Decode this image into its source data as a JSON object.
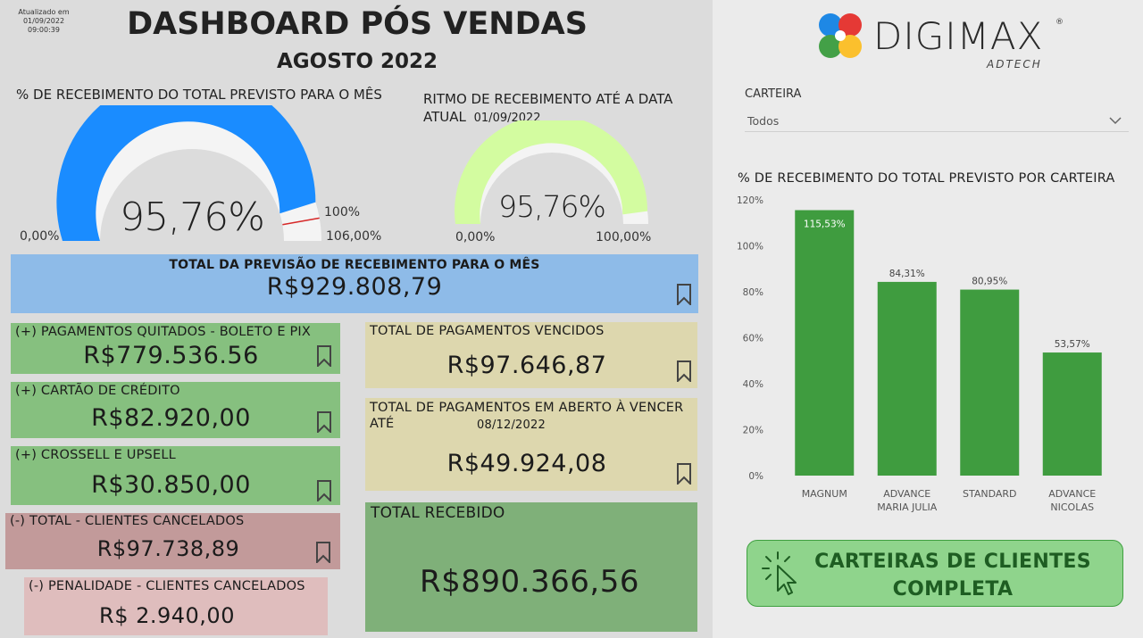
{
  "updated": {
    "label": "Atualizado em",
    "datetime": "01/09/2022 09:00:39"
  },
  "header": {
    "title": "DASHBOARD PÓS VENDAS",
    "subtitle": "AGOSTO 2022"
  },
  "gauge1": {
    "title": "% DE RECEBIMENTO DO TOTAL PREVISTO PARA O MÊS",
    "value": "95,76%",
    "min_label": "0,00%",
    "max_label": "106,00%",
    "target_label": "100%",
    "value_fraction": 0.9034,
    "target_fraction": 0.9434,
    "fill_color": "#1a8cff",
    "track_color": "#f4f4f4",
    "target_color": "#d62828"
  },
  "gauge2": {
    "title": "RITMO DE RECEBIMENTO ATÉ A DATA ATUAL",
    "date": "01/09/2022",
    "value": "95,76%",
    "min_label": "0,00%",
    "max_label": "100,00%",
    "value_fraction": 0.9576,
    "fill_color": "#d3fca0",
    "track_color": "#f4f4f4"
  },
  "forecast": {
    "label": "TOTAL DA PREVISÃO DE RECEBIMENTO PARA O MÊS",
    "value": "R$929.808,79"
  },
  "cards": {
    "boleto_pix": {
      "label": "(+) PAGAMENTOS QUITADOS - BOLETO E PIX",
      "value": "R$779.536.56"
    },
    "cartao": {
      "label": "(+) CARTÃO DE CRÉDITO",
      "value": "R$82.920,00"
    },
    "crossell": {
      "label": "(+) CROSSELL E UPSELL",
      "value": "R$30.850,00"
    },
    "cancelados": {
      "label": "(-) TOTAL - CLIENTES CANCELADOS",
      "value": "R$97.738,89"
    },
    "penalidade": {
      "label": "(-) PENALIDADE - CLIENTES CANCELADOS",
      "value": "R$ 2.940,00"
    },
    "vencidos": {
      "label": "TOTAL DE PAGAMENTOS VENCIDOS",
      "value": "R$97.646,87"
    },
    "aberto": {
      "label": "TOTAL DE PAGAMENTOS EM ABERTO À VENCER ATÉ",
      "date": "08/12/2022",
      "value": "R$49.924,08"
    },
    "recebido": {
      "label": "TOTAL RECEBIDO",
      "value": "R$890.366,56"
    }
  },
  "logo": {
    "name": "DIGIMAX",
    "tagline": "ADTECH",
    "registered": "®"
  },
  "filter": {
    "label": "CARTEIRA",
    "selected": "Todos"
  },
  "chart_data": {
    "type": "bar",
    "title": "% DE RECEBIMENTO DO TOTAL PREVISTO POR CARTEIRA",
    "categories": [
      [
        "MAGNUM"
      ],
      [
        "ADVANCE",
        "MARIA JULIA"
      ],
      [
        "STANDARD"
      ],
      [
        "ADVANCE",
        "NICOLAS"
      ]
    ],
    "values": [
      115.53,
      84.31,
      80.95,
      53.57
    ],
    "data_labels": [
      "115,53%",
      "84,31%",
      "80,95%",
      "53,57%"
    ],
    "yticks": [
      "0%",
      "20%",
      "40%",
      "60%",
      "80%",
      "100%",
      "120%"
    ],
    "ytick_values": [
      0,
      20,
      40,
      60,
      80,
      100,
      120
    ],
    "ylim": [
      0,
      120
    ],
    "bar_color": "#3f9c3f",
    "grid": false
  },
  "cta": {
    "line1": "CARTEIRAS DE CLIENTES",
    "line2": "COMPLETA"
  }
}
